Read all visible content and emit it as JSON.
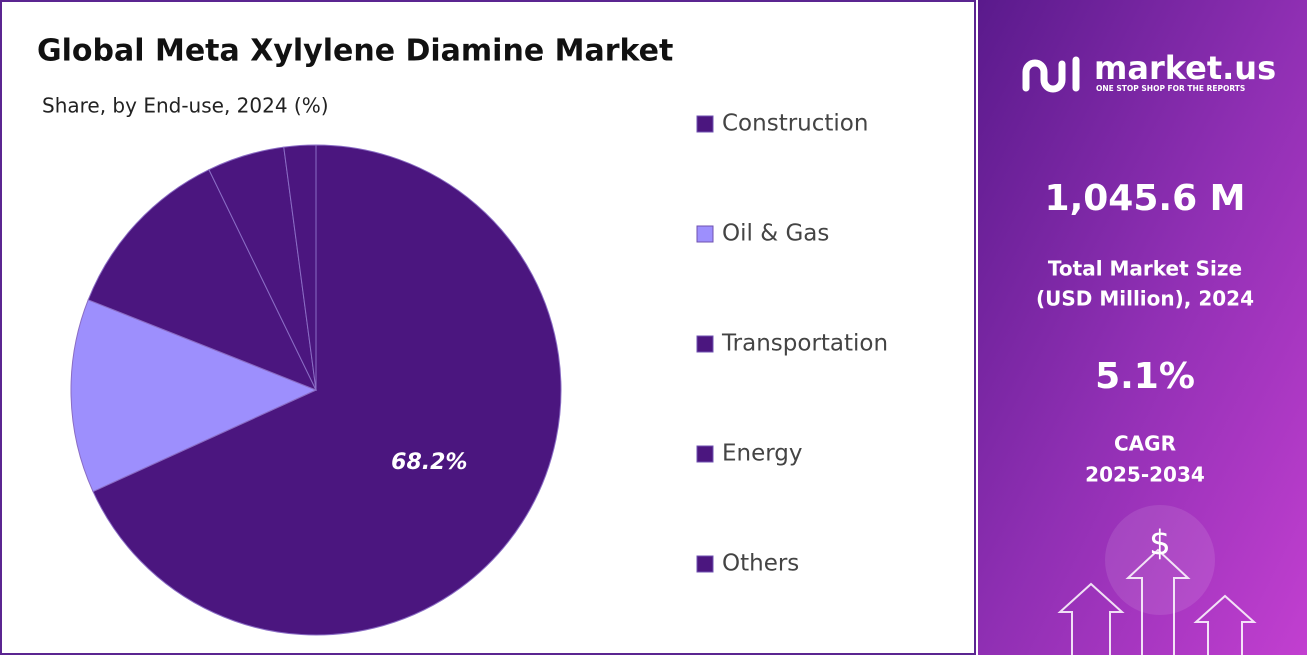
{
  "chart_data": {
    "type": "pie",
    "title": "Global Meta Xylylene Diamine Market",
    "subtitle": "Share, by End-use, 2024 (%)",
    "categories": [
      "Construction",
      "Oil & Gas",
      "Transportation",
      "Energy",
      "Others"
    ],
    "values": [
      68.2,
      12.8,
      11.8,
      5.1,
      2.1
    ],
    "value_labels": [
      "68.2%",
      null,
      null,
      null,
      null
    ],
    "colors": [
      "#4b167f",
      "#9d8ffd",
      "#4b167f",
      "#4b167f",
      "#4b167f"
    ]
  },
  "sidebar": {
    "brand": "market.us",
    "tagline": "ONE STOP SHOP FOR THE REPORTS",
    "market_size": "1,045.6 M",
    "market_size_label_1": "Total Market Size",
    "market_size_label_2": "(USD Million), 2024",
    "cagr": "5.1%",
    "cagr_label_1": "CAGR",
    "cagr_label_2": "2025-2034",
    "icon": "$"
  }
}
